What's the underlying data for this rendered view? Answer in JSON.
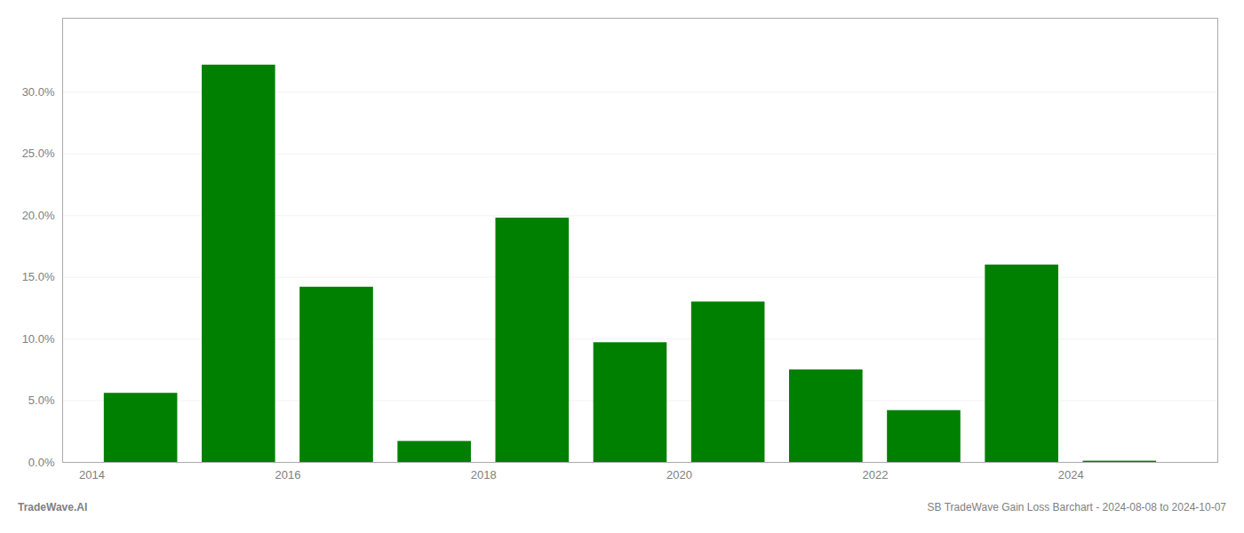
{
  "chart_data": {
    "type": "bar",
    "x": [
      2014,
      2015,
      2016,
      2017,
      2018,
      2019,
      2020,
      2021,
      2022,
      2023,
      2024
    ],
    "values": [
      0.056,
      0.322,
      0.142,
      0.017,
      0.198,
      0.097,
      0.13,
      0.075,
      0.042,
      0.16,
      0.001
    ],
    "color": "#008000",
    "xlim": [
      2013.2,
      2025.0
    ],
    "xticks": [
      {
        "value": 2013.5,
        "label": "2014"
      },
      {
        "value": 2015.5,
        "label": "2016"
      },
      {
        "value": 2017.5,
        "label": "2018"
      },
      {
        "value": 2019.5,
        "label": "2020"
      },
      {
        "value": 2021.5,
        "label": "2022"
      },
      {
        "value": 2023.5,
        "label": "2024"
      }
    ],
    "ylim": [
      0,
      0.36
    ],
    "yticks": [
      {
        "value": 0.0,
        "label": "0.0%"
      },
      {
        "value": 0.05,
        "label": "5.0%"
      },
      {
        "value": 0.1,
        "label": "10.0%"
      },
      {
        "value": 0.15,
        "label": "15.0%"
      },
      {
        "value": 0.2,
        "label": "20.0%"
      },
      {
        "value": 0.25,
        "label": "25.0%"
      },
      {
        "value": 0.3,
        "label": "30.0%"
      }
    ],
    "grid": true,
    "annotations": [
      "TradeWave.AI",
      "SB TradeWave Gain Loss Barchart - 2024-08-08 to 2024-10-07"
    ]
  }
}
